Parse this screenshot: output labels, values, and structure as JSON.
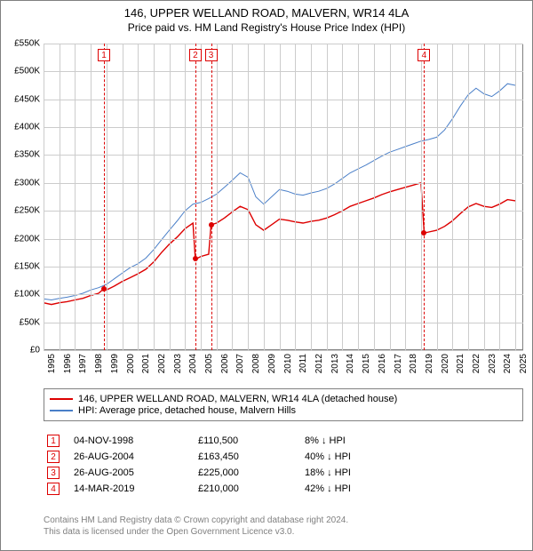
{
  "title": "146, UPPER WELLAND ROAD, MALVERN, WR14 4LA",
  "subtitle": "Price paid vs. HM Land Registry's House Price Index (HPI)",
  "chart": {
    "type": "line",
    "background_color": "#ffffff",
    "grid_color": "#cccccc",
    "axis_color": "#808080",
    "x_years": [
      1995,
      1996,
      1997,
      1998,
      1999,
      2000,
      2001,
      2002,
      2003,
      2004,
      2005,
      2006,
      2007,
      2008,
      2009,
      2010,
      2011,
      2012,
      2013,
      2014,
      2015,
      2016,
      2017,
      2018,
      2019,
      2020,
      2021,
      2022,
      2023,
      2024,
      2025
    ],
    "x_min": 1995,
    "x_max": 2025.5,
    "y_ticks": [
      0,
      50000,
      100000,
      150000,
      200000,
      250000,
      300000,
      350000,
      400000,
      450000,
      500000,
      550000
    ],
    "y_tick_labels": [
      "£0",
      "£50K",
      "£100K",
      "£150K",
      "£200K",
      "£250K",
      "£300K",
      "£350K",
      "£400K",
      "£450K",
      "£500K",
      "£550K"
    ],
    "y_min": 0,
    "y_max": 550000,
    "series": [
      {
        "name": "hpi",
        "label": "HPI: Average price, detached house, Malvern Hills",
        "color": "#4a7fc8",
        "line_width": 1,
        "data": [
          [
            1995.0,
            92000
          ],
          [
            1995.5,
            90000
          ],
          [
            1996.0,
            93000
          ],
          [
            1996.5,
            95000
          ],
          [
            1997.0,
            98000
          ],
          [
            1997.5,
            102000
          ],
          [
            1998.0,
            108000
          ],
          [
            1998.5,
            112000
          ],
          [
            1999.0,
            118000
          ],
          [
            1999.5,
            128000
          ],
          [
            2000.0,
            138000
          ],
          [
            2000.5,
            148000
          ],
          [
            2001.0,
            155000
          ],
          [
            2001.5,
            165000
          ],
          [
            2002.0,
            180000
          ],
          [
            2002.5,
            198000
          ],
          [
            2003.0,
            215000
          ],
          [
            2003.5,
            232000
          ],
          [
            2004.0,
            250000
          ],
          [
            2004.5,
            262000
          ],
          [
            2005.0,
            265000
          ],
          [
            2005.5,
            272000
          ],
          [
            2006.0,
            280000
          ],
          [
            2006.5,
            292000
          ],
          [
            2007.0,
            305000
          ],
          [
            2007.5,
            318000
          ],
          [
            2008.0,
            310000
          ],
          [
            2008.5,
            275000
          ],
          [
            2009.0,
            262000
          ],
          [
            2009.5,
            275000
          ],
          [
            2010.0,
            288000
          ],
          [
            2010.5,
            285000
          ],
          [
            2011.0,
            280000
          ],
          [
            2011.5,
            278000
          ],
          [
            2012.0,
            282000
          ],
          [
            2012.5,
            285000
          ],
          [
            2013.0,
            290000
          ],
          [
            2013.5,
            298000
          ],
          [
            2014.0,
            308000
          ],
          [
            2014.5,
            318000
          ],
          [
            2015.0,
            325000
          ],
          [
            2015.5,
            332000
          ],
          [
            2016.0,
            340000
          ],
          [
            2016.5,
            348000
          ],
          [
            2017.0,
            355000
          ],
          [
            2017.5,
            360000
          ],
          [
            2018.0,
            365000
          ],
          [
            2018.5,
            370000
          ],
          [
            2019.0,
            375000
          ],
          [
            2019.5,
            378000
          ],
          [
            2020.0,
            382000
          ],
          [
            2020.5,
            395000
          ],
          [
            2021.0,
            415000
          ],
          [
            2021.5,
            438000
          ],
          [
            2022.0,
            458000
          ],
          [
            2022.5,
            470000
          ],
          [
            2023.0,
            460000
          ],
          [
            2023.5,
            455000
          ],
          [
            2024.0,
            465000
          ],
          [
            2024.5,
            478000
          ],
          [
            2025.0,
            475000
          ]
        ]
      },
      {
        "name": "property",
        "label": "146, UPPER WELLAND ROAD, MALVERN, WR14 4LA (detached house)",
        "color": "#dd0000",
        "line_width": 1.4,
        "data": [
          [
            1995.0,
            85000
          ],
          [
            1995.5,
            82000
          ],
          [
            1996.0,
            85000
          ],
          [
            1996.5,
            87000
          ],
          [
            1997.0,
            90000
          ],
          [
            1997.5,
            93000
          ],
          [
            1998.0,
            98000
          ],
          [
            1998.5,
            102000
          ],
          [
            1998.84,
            110500
          ],
          [
            1999.0,
            108000
          ],
          [
            1999.5,
            115000
          ],
          [
            2000.0,
            123000
          ],
          [
            2000.5,
            130000
          ],
          [
            2001.0,
            137000
          ],
          [
            2001.5,
            145000
          ],
          [
            2002.0,
            158000
          ],
          [
            2002.5,
            175000
          ],
          [
            2003.0,
            190000
          ],
          [
            2003.5,
            203000
          ],
          [
            2004.0,
            218000
          ],
          [
            2004.5,
            228000
          ],
          [
            2004.65,
            163450
          ],
          [
            2004.8,
            165000
          ],
          [
            2005.0,
            168000
          ],
          [
            2005.5,
            172000
          ],
          [
            2005.65,
            225000
          ],
          [
            2006.0,
            228000
          ],
          [
            2006.5,
            237000
          ],
          [
            2007.0,
            248000
          ],
          [
            2007.5,
            258000
          ],
          [
            2008.0,
            252000
          ],
          [
            2008.5,
            225000
          ],
          [
            2009.0,
            215000
          ],
          [
            2009.5,
            225000
          ],
          [
            2010.0,
            235000
          ],
          [
            2010.5,
            233000
          ],
          [
            2011.0,
            230000
          ],
          [
            2011.5,
            228000
          ],
          [
            2012.0,
            231000
          ],
          [
            2012.5,
            233000
          ],
          [
            2013.0,
            237000
          ],
          [
            2013.5,
            243000
          ],
          [
            2014.0,
            250000
          ],
          [
            2014.5,
            258000
          ],
          [
            2015.0,
            263000
          ],
          [
            2015.5,
            268000
          ],
          [
            2016.0,
            273000
          ],
          [
            2016.5,
            279000
          ],
          [
            2017.0,
            284000
          ],
          [
            2017.5,
            288000
          ],
          [
            2018.0,
            292000
          ],
          [
            2018.5,
            296000
          ],
          [
            2019.0,
            300000
          ],
          [
            2019.2,
            210000
          ],
          [
            2019.5,
            212000
          ],
          [
            2020.0,
            215000
          ],
          [
            2020.5,
            222000
          ],
          [
            2021.0,
            232000
          ],
          [
            2021.5,
            245000
          ],
          [
            2022.0,
            257000
          ],
          [
            2022.5,
            263000
          ],
          [
            2023.0,
            258000
          ],
          [
            2023.5,
            256000
          ],
          [
            2024.0,
            262000
          ],
          [
            2024.5,
            270000
          ],
          [
            2025.0,
            268000
          ]
        ]
      }
    ],
    "markers": [
      {
        "n": "1",
        "x": 1998.84,
        "y": 110500
      },
      {
        "n": "2",
        "x": 2004.65,
        "y": 163450
      },
      {
        "n": "3",
        "x": 2005.65,
        "y": 225000
      },
      {
        "n": "4",
        "x": 2019.2,
        "y": 210000
      }
    ],
    "marker_color": "#dd0000"
  },
  "legend": {
    "items": [
      {
        "color": "#dd0000",
        "label": "146, UPPER WELLAND ROAD, MALVERN, WR14 4LA (detached house)"
      },
      {
        "color": "#4a7fc8",
        "label": "HPI: Average price, detached house, Malvern Hills"
      }
    ]
  },
  "events": [
    {
      "n": "1",
      "date": "04-NOV-1998",
      "price": "£110,500",
      "delta": "8% ↓ HPI"
    },
    {
      "n": "2",
      "date": "26-AUG-2004",
      "price": "£163,450",
      "delta": "40% ↓ HPI"
    },
    {
      "n": "3",
      "date": "26-AUG-2005",
      "price": "£225,000",
      "delta": "18% ↓ HPI"
    },
    {
      "n": "4",
      "date": "14-MAR-2019",
      "price": "£210,000",
      "delta": "42% ↓ HPI"
    }
  ],
  "footer": {
    "line1": "Contains HM Land Registry data © Crown copyright and database right 2024.",
    "line2": "This data is licensed under the Open Government Licence v3.0."
  }
}
